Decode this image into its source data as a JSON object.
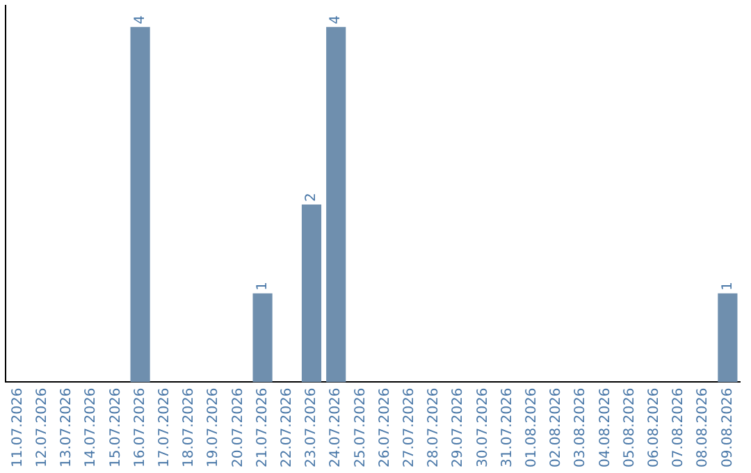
{
  "chart_data": {
    "type": "bar",
    "categories": [
      "11.07.2026",
      "12.07.2026",
      "13.07.2026",
      "14.07.2026",
      "15.07.2026",
      "16.07.2026",
      "17.07.2026",
      "18.07.2026",
      "19.07.2026",
      "20.07.2026",
      "21.07.2026",
      "22.07.2026",
      "23.07.2026",
      "24.07.2026",
      "25.07.2026",
      "26.07.2026",
      "27.07.2026",
      "28.07.2026",
      "29.07.2026",
      "30.07.2026",
      "31.07.2026",
      "01.08.2026",
      "02.08.2026",
      "03.08.2026",
      "04.08.2026",
      "05.08.2026",
      "06.08.2026",
      "07.08.2026",
      "08.08.2026",
      "09.08.2026"
    ],
    "values": [
      0,
      0,
      0,
      0,
      0,
      4,
      0,
      0,
      0,
      0,
      1,
      0,
      2,
      4,
      0,
      0,
      0,
      0,
      0,
      0,
      0,
      0,
      0,
      0,
      0,
      0,
      0,
      0,
      0,
      1
    ],
    "value_labels": [
      null,
      null,
      null,
      null,
      null,
      "4",
      null,
      null,
      null,
      null,
      "1",
      null,
      "2",
      "4",
      null,
      null,
      null,
      null,
      null,
      null,
      null,
      null,
      null,
      null,
      null,
      null,
      null,
      null,
      null,
      "1"
    ],
    "color": "#6f8fae",
    "grid": false,
    "legend": false
  }
}
